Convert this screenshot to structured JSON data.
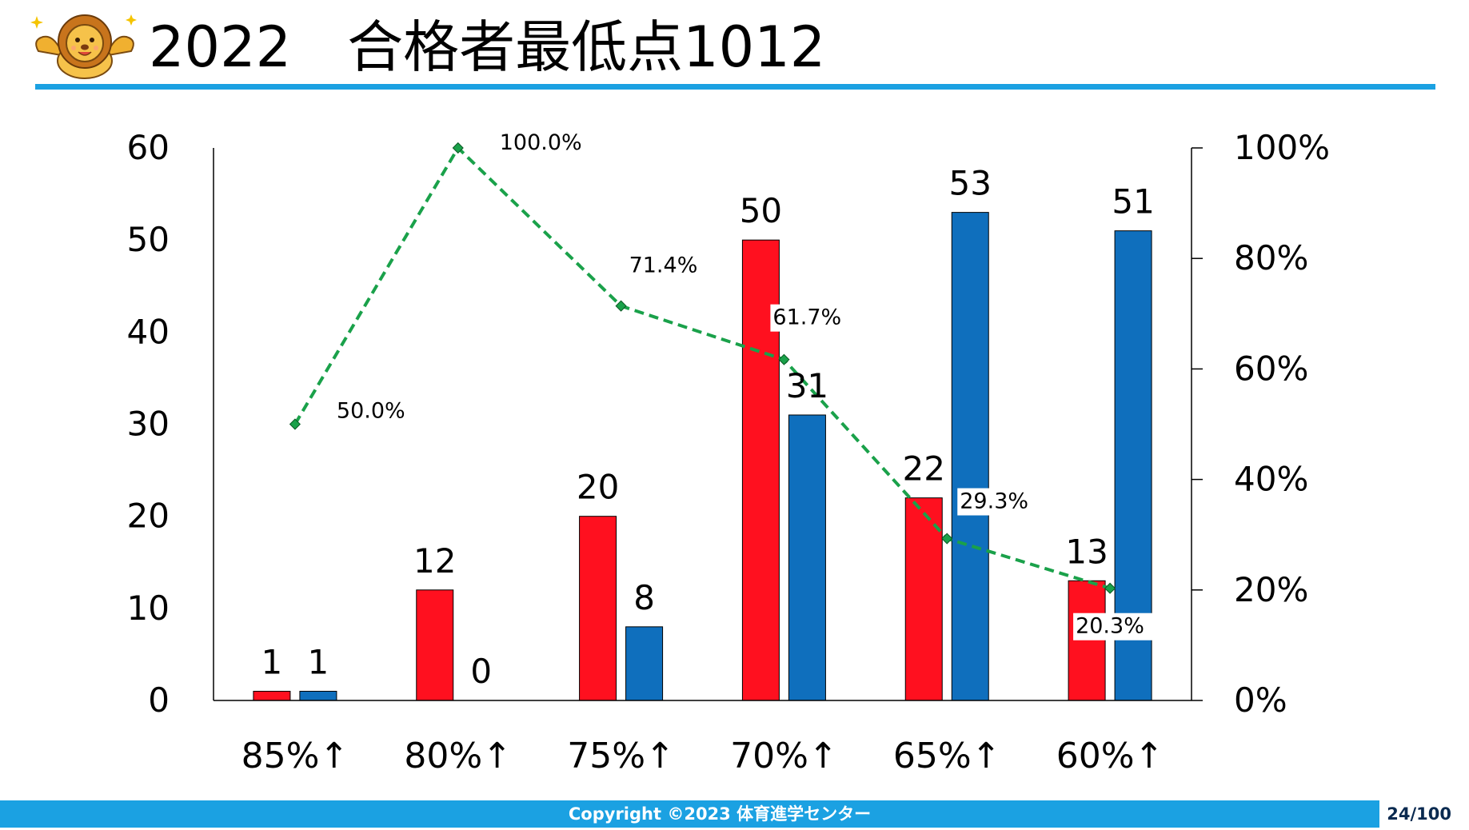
{
  "slide": {
    "title": "2022　合格者最低点1012",
    "copyright": "Copyright ©2023 体育進学センター",
    "page_number": "24/100",
    "accent_color": "#1ba1e2",
    "logo_icon": "lion-mascot-icon"
  },
  "chart_data": {
    "type": "bar",
    "categories": [
      "85%↑",
      "80%↑",
      "75%↑",
      "70%↑",
      "65%↑",
      "60%↑"
    ],
    "series": [
      {
        "values": [
          1,
          12,
          20,
          50,
          22,
          13
        ],
        "color": "#ff101f",
        "value_labels": [
          "1",
          "12",
          "20",
          "50",
          "22",
          "13"
        ]
      },
      {
        "values": [
          1,
          0,
          8,
          31,
          53,
          51
        ],
        "color": "#0f6fbd",
        "value_labels": [
          "1",
          "0",
          "8",
          "31",
          "53",
          "51"
        ]
      }
    ],
    "line_series": {
      "type": "line",
      "axis": "secondary",
      "values": [
        50.0,
        100.0,
        71.4,
        61.7,
        29.3,
        20.3
      ],
      "value_labels": [
        "50.0%",
        "100.0%",
        "71.4%",
        "61.7%",
        "29.3%",
        "20.3%"
      ],
      "color": "#1aa14a",
      "style": "dashed"
    },
    "ylim": [
      0,
      60
    ],
    "yticks": [
      "0",
      "10",
      "20",
      "30",
      "40",
      "50",
      "60"
    ],
    "y2lim": [
      0,
      100
    ],
    "y2ticks": [
      "0%",
      "20%",
      "40%",
      "60%",
      "80%",
      "100%"
    ],
    "grid": false,
    "legend": "none"
  }
}
